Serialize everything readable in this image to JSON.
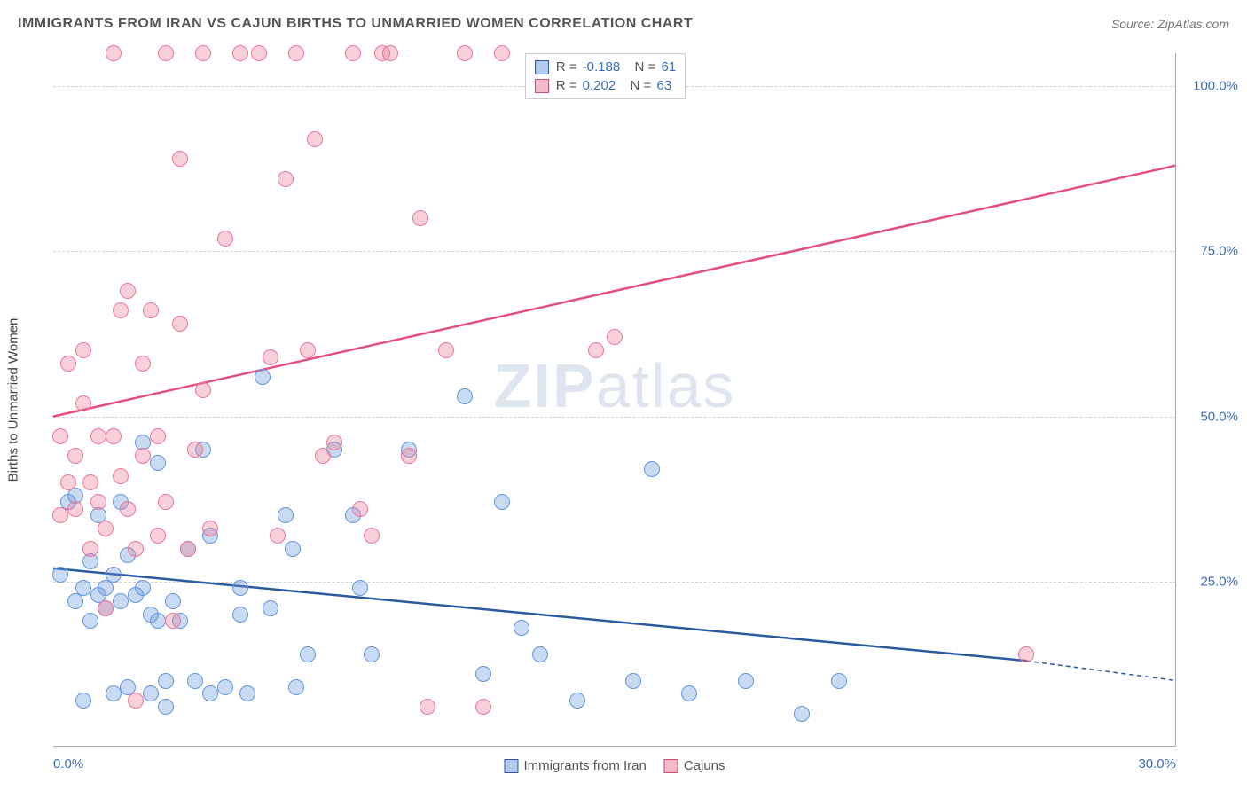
{
  "title": "IMMIGRANTS FROM IRAN VS CAJUN BIRTHS TO UNMARRIED WOMEN CORRELATION CHART",
  "source": "Source: ZipAtlas.com",
  "watermark_bold": "ZIP",
  "watermark_light": "atlas",
  "chart": {
    "type": "scatter",
    "background_color": "#ffffff",
    "grid_color": "#d0d0d0",
    "grid_style": "dashed",
    "axis_color": "#aaaaaa",
    "xlim": [
      0,
      30
    ],
    "ylim": [
      0,
      105
    ],
    "xticks": [
      {
        "pos": 0,
        "label": "0.0%"
      },
      {
        "pos": 30,
        "label": "30.0%"
      }
    ],
    "yticks": [
      {
        "pos": 25,
        "label": "25.0%"
      },
      {
        "pos": 50,
        "label": "50.0%"
      },
      {
        "pos": 75,
        "label": "75.0%"
      },
      {
        "pos": 100,
        "label": "100.0%"
      }
    ],
    "ylabel": "Births to Unmarried Women",
    "marker_radius": 9,
    "line_width": 2.5,
    "label_fontsize": 15,
    "tick_color": "#3b6db5",
    "series": [
      {
        "name": "Immigrants from Iran",
        "color": "#6496dc",
        "fill": "rgba(100,150,220,0.35)",
        "swatch_border": "#2c5aa0",
        "R": "-0.188",
        "N": "61",
        "trend": {
          "x1": 0,
          "y1": 27,
          "x2": 26,
          "y2": 13,
          "x2_dash": 30,
          "y2_dash": 10,
          "color": "#2c5aa0"
        },
        "points": [
          [
            0.2,
            26
          ],
          [
            0.4,
            37
          ],
          [
            0.6,
            38
          ],
          [
            0.6,
            22
          ],
          [
            0.8,
            24
          ],
          [
            0.8,
            7
          ],
          [
            1.0,
            28
          ],
          [
            1.0,
            19
          ],
          [
            1.2,
            35
          ],
          [
            1.2,
            23
          ],
          [
            1.4,
            21
          ],
          [
            1.4,
            24
          ],
          [
            1.6,
            26
          ],
          [
            1.6,
            8
          ],
          [
            1.8,
            37
          ],
          [
            1.8,
            22
          ],
          [
            2.0,
            29
          ],
          [
            2.0,
            9
          ],
          [
            2.2,
            23
          ],
          [
            2.4,
            46
          ],
          [
            2.4,
            24
          ],
          [
            2.6,
            20
          ],
          [
            2.6,
            8
          ],
          [
            2.8,
            43
          ],
          [
            2.8,
            19
          ],
          [
            3.0,
            10
          ],
          [
            3.0,
            6
          ],
          [
            3.2,
            22
          ],
          [
            3.4,
            19
          ],
          [
            3.6,
            30
          ],
          [
            3.8,
            10
          ],
          [
            4.0,
            45
          ],
          [
            4.2,
            32
          ],
          [
            4.2,
            8
          ],
          [
            4.6,
            9
          ],
          [
            5.0,
            24
          ],
          [
            5.0,
            20
          ],
          [
            5.2,
            8
          ],
          [
            5.6,
            56
          ],
          [
            5.8,
            21
          ],
          [
            6.2,
            35
          ],
          [
            6.4,
            30
          ],
          [
            6.5,
            9
          ],
          [
            6.8,
            14
          ],
          [
            7.5,
            45
          ],
          [
            8.0,
            35
          ],
          [
            8.2,
            24
          ],
          [
            8.5,
            14
          ],
          [
            9.5,
            45
          ],
          [
            11.0,
            53
          ],
          [
            11.5,
            11
          ],
          [
            12.0,
            37
          ],
          [
            12.5,
            18
          ],
          [
            13.0,
            14
          ],
          [
            14.0,
            7
          ],
          [
            15.5,
            10
          ],
          [
            16.0,
            42
          ],
          [
            17.0,
            8
          ],
          [
            18.5,
            10
          ],
          [
            20.0,
            5
          ],
          [
            21.0,
            10
          ]
        ]
      },
      {
        "name": "Cajuns",
        "color": "#eb7896",
        "fill": "rgba(235,120,150,0.35)",
        "swatch_border": "#d44a72",
        "R": "0.202",
        "N": "63",
        "trend": {
          "x1": 0,
          "y1": 50,
          "x2": 30,
          "y2": 88,
          "color": "#e05080"
        },
        "points": [
          [
            0.2,
            35
          ],
          [
            0.2,
            47
          ],
          [
            0.4,
            40
          ],
          [
            0.4,
            58
          ],
          [
            0.6,
            36
          ],
          [
            0.6,
            44
          ],
          [
            0.8,
            52
          ],
          [
            0.8,
            60
          ],
          [
            1.0,
            40
          ],
          [
            1.0,
            30
          ],
          [
            1.2,
            47
          ],
          [
            1.2,
            37
          ],
          [
            1.4,
            33
          ],
          [
            1.4,
            21
          ],
          [
            1.6,
            47
          ],
          [
            1.6,
            105
          ],
          [
            1.8,
            66
          ],
          [
            1.8,
            41
          ],
          [
            2.0,
            36
          ],
          [
            2.0,
            69
          ],
          [
            2.2,
            30
          ],
          [
            2.2,
            7
          ],
          [
            2.4,
            44
          ],
          [
            2.4,
            58
          ],
          [
            2.6,
            66
          ],
          [
            2.8,
            32
          ],
          [
            2.8,
            47
          ],
          [
            3.0,
            105
          ],
          [
            3.0,
            37
          ],
          [
            3.2,
            19
          ],
          [
            3.4,
            89
          ],
          [
            3.4,
            64
          ],
          [
            3.6,
            30
          ],
          [
            3.8,
            45
          ],
          [
            4.0,
            54
          ],
          [
            4.0,
            105
          ],
          [
            4.2,
            33
          ],
          [
            4.6,
            77
          ],
          [
            5.0,
            105
          ],
          [
            5.5,
            105
          ],
          [
            5.8,
            59
          ],
          [
            6.0,
            32
          ],
          [
            6.2,
            86
          ],
          [
            6.5,
            105
          ],
          [
            6.8,
            60
          ],
          [
            7.0,
            92
          ],
          [
            7.2,
            44
          ],
          [
            7.5,
            46
          ],
          [
            8.0,
            105
          ],
          [
            8.2,
            36
          ],
          [
            8.5,
            32
          ],
          [
            8.8,
            105
          ],
          [
            9.0,
            105
          ],
          [
            9.5,
            44
          ],
          [
            9.8,
            80
          ],
          [
            10.0,
            6
          ],
          [
            10.5,
            60
          ],
          [
            11.0,
            105
          ],
          [
            11.5,
            6
          ],
          [
            12.0,
            105
          ],
          [
            14.5,
            60
          ],
          [
            15.0,
            62
          ],
          [
            26.0,
            14
          ]
        ]
      }
    ]
  },
  "legend_bottom": [
    {
      "swatch_class": "blue",
      "label": "Immigrants from Iran"
    },
    {
      "swatch_class": "pink",
      "label": "Cajuns"
    }
  ]
}
